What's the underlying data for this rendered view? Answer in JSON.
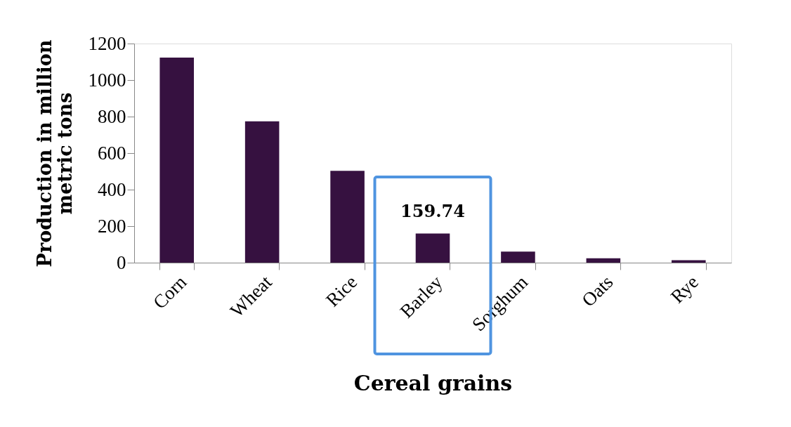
{
  "chart_data": {
    "type": "bar",
    "xlabel": "Cereal grains",
    "ylabel": "Production in million metric tons",
    "categories": [
      "Corn",
      "Wheat",
      "Rice",
      "Barley",
      "Sorghum",
      "Oats",
      "Rye"
    ],
    "values": [
      1123,
      774,
      503,
      159.74,
      61,
      24,
      13
    ],
    "value_labels": [
      null,
      null,
      null,
      "159.74",
      null,
      null,
      null
    ],
    "color": "#361140",
    "ylim": [
      0,
      1200
    ],
    "yticks": [
      0,
      200,
      400,
      600,
      800,
      1000,
      1200
    ],
    "grid": false
  }
}
